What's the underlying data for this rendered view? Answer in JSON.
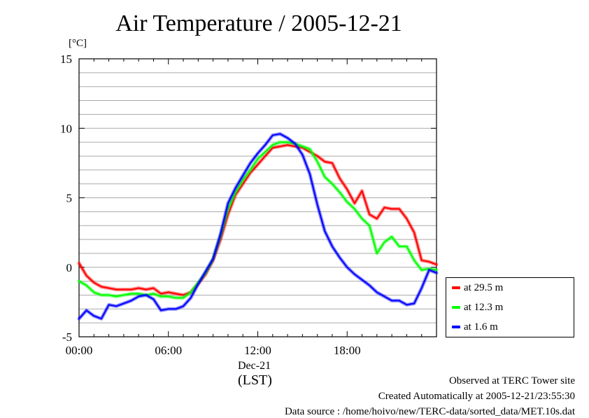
{
  "title": "Air Temperature / 2005-12-21",
  "unit_label": "[°C]",
  "legend": [
    {
      "label": "at 29.5 m",
      "color": "#ff0000"
    },
    {
      "label": "at 12.3 m",
      "color": "#00ff00"
    },
    {
      "label": "at 1.6 m",
      "color": "#0000ff"
    }
  ],
  "x_date_label": "Dec-21",
  "x_tz_label": "(LST)",
  "footer": {
    "line1": "Observed at TERC Tower site",
    "line2": "Created Automatically at 2005-12-21/23:55:30",
    "line3": "Data source : /home/hoivo/new/TERC-data/sorted_data/MET.10s.dat"
  },
  "chart_data": {
    "type": "line",
    "title": "Air Temperature / 2005-12-21",
    "xlabel": "(LST)",
    "ylabel": "[°C]",
    "xlim": [
      0,
      24
    ],
    "ylim": [
      -5,
      15
    ],
    "grid": true,
    "legend_position": "right",
    "x_ticks": [
      {
        "value": 0,
        "label": "00:00"
      },
      {
        "value": 6,
        "label": "06:00"
      },
      {
        "value": 12,
        "label": "12:00"
      },
      {
        "value": 18,
        "label": "18:00"
      }
    ],
    "y_ticks": [
      -5,
      0,
      5,
      10,
      15
    ],
    "x": [
      0,
      0.5,
      1,
      1.5,
      2,
      2.5,
      3,
      3.5,
      4,
      4.5,
      5,
      5.5,
      6,
      6.5,
      7,
      7.5,
      8,
      8.5,
      9,
      9.5,
      10,
      10.5,
      11,
      11.5,
      12,
      12.5,
      13,
      13.5,
      14,
      14.5,
      15,
      15.5,
      16,
      16.5,
      17,
      17.5,
      18,
      18.5,
      19,
      19.5,
      20,
      20.5,
      21,
      21.5,
      22,
      22.5,
      23,
      23.5,
      24
    ],
    "series": [
      {
        "name": "at 29.5 m",
        "color": "#ff0000",
        "values": [
          0.3,
          -0.6,
          -1.1,
          -1.4,
          -1.5,
          -1.6,
          -1.6,
          -1.6,
          -1.5,
          -1.6,
          -1.5,
          -1.9,
          -1.8,
          -1.9,
          -2.0,
          -1.8,
          -1.2,
          -0.5,
          0.5,
          2.0,
          3.8,
          5.2,
          6.0,
          6.8,
          7.4,
          8.0,
          8.6,
          8.7,
          8.8,
          8.7,
          8.6,
          8.3,
          8.0,
          7.6,
          7.5,
          6.4,
          5.6,
          4.6,
          5.5,
          3.8,
          3.5,
          4.3,
          4.2,
          4.2,
          3.5,
          2.5,
          0.5,
          0.4,
          0.2
        ]
      },
      {
        "name": "at 12.3 m",
        "color": "#00ff00",
        "values": [
          -1.0,
          -1.3,
          -1.8,
          -2.0,
          -2.0,
          -2.1,
          -2.0,
          -1.9,
          -1.9,
          -2.0,
          -1.9,
          -2.1,
          -2.1,
          -2.2,
          -2.2,
          -1.8,
          -1.1,
          -0.4,
          0.6,
          2.3,
          4.2,
          5.4,
          6.3,
          7.0,
          7.8,
          8.3,
          8.8,
          9.0,
          9.0,
          8.9,
          8.7,
          8.5,
          7.6,
          6.5,
          6.0,
          5.4,
          4.7,
          4.2,
          3.5,
          3.0,
          1.0,
          1.8,
          2.2,
          1.5,
          1.5,
          0.5,
          -0.2,
          -0.1,
          -0.2
        ]
      },
      {
        "name": "at 1.6 m",
        "color": "#0000ff",
        "values": [
          -3.7,
          -3.1,
          -3.5,
          -3.7,
          -2.7,
          -2.8,
          -2.6,
          -2.4,
          -2.1,
          -2.0,
          -2.3,
          -3.1,
          -3.0,
          -3.0,
          -2.8,
          -2.2,
          -1.2,
          -0.3,
          0.6,
          2.4,
          4.6,
          5.7,
          6.6,
          7.5,
          8.2,
          8.8,
          9.5,
          9.6,
          9.3,
          8.9,
          8.1,
          6.7,
          4.5,
          2.6,
          1.5,
          0.7,
          0.0,
          -0.5,
          -0.9,
          -1.3,
          -1.8,
          -2.1,
          -2.4,
          -2.4,
          -2.7,
          -2.6,
          -1.5,
          -0.2,
          -0.4
        ]
      }
    ]
  }
}
